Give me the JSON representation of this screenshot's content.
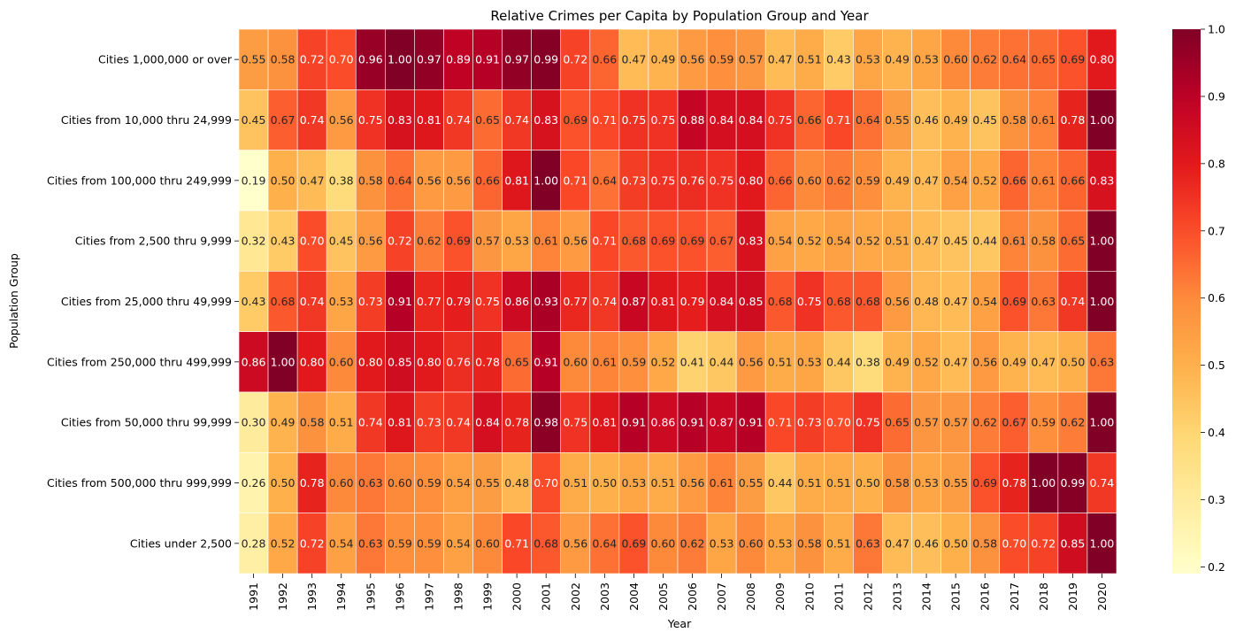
{
  "chart_data": {
    "type": "heatmap",
    "title": "Relative Crimes per Capita by Population Group and Year",
    "xlabel": "Year",
    "ylabel": "Population Group",
    "x": [
      1991,
      1992,
      1993,
      1994,
      1995,
      1996,
      1997,
      1998,
      1999,
      2000,
      2001,
      2002,
      2003,
      2004,
      2005,
      2006,
      2007,
      2008,
      2009,
      2010,
      2011,
      2012,
      2013,
      2014,
      2015,
      2016,
      2017,
      2018,
      2019,
      2020
    ],
    "y": [
      "Cities 1,000,000 or over",
      "Cities from 10,000 thru 24,999",
      "Cities from 100,000 thru 249,999",
      "Cities from 2,500 thru 9,999",
      "Cities from 25,000 thru 49,999",
      "Cities from 250,000 thru 499,999",
      "Cities from 50,000 thru 99,999",
      "Cities from 500,000 thru 999,999",
      "Cities under 2,500"
    ],
    "values": [
      [
        0.55,
        0.58,
        0.72,
        0.7,
        0.96,
        1.0,
        0.97,
        0.89,
        0.91,
        0.97,
        0.99,
        0.72,
        0.66,
        0.47,
        0.49,
        0.56,
        0.59,
        0.57,
        0.47,
        0.51,
        0.43,
        0.53,
        0.49,
        0.53,
        0.6,
        0.62,
        0.64,
        0.65,
        0.69,
        0.8
      ],
      [
        0.45,
        0.67,
        0.74,
        0.56,
        0.75,
        0.83,
        0.81,
        0.74,
        0.65,
        0.74,
        0.83,
        0.69,
        0.71,
        0.75,
        0.75,
        0.88,
        0.84,
        0.84,
        0.75,
        0.66,
        0.71,
        0.64,
        0.55,
        0.46,
        0.49,
        0.45,
        0.58,
        0.61,
        0.78,
        1.0
      ],
      [
        0.19,
        0.5,
        0.47,
        0.38,
        0.58,
        0.64,
        0.56,
        0.56,
        0.66,
        0.81,
        1.0,
        0.71,
        0.64,
        0.73,
        0.75,
        0.76,
        0.75,
        0.8,
        0.66,
        0.6,
        0.62,
        0.59,
        0.49,
        0.47,
        0.54,
        0.52,
        0.66,
        0.61,
        0.66,
        0.83
      ],
      [
        0.32,
        0.43,
        0.7,
        0.45,
        0.56,
        0.72,
        0.62,
        0.69,
        0.57,
        0.53,
        0.61,
        0.56,
        0.71,
        0.68,
        0.69,
        0.69,
        0.67,
        0.83,
        0.54,
        0.52,
        0.54,
        0.52,
        0.51,
        0.47,
        0.45,
        0.44,
        0.61,
        0.58,
        0.65,
        1.0
      ],
      [
        0.43,
        0.68,
        0.74,
        0.53,
        0.73,
        0.91,
        0.77,
        0.79,
        0.75,
        0.86,
        0.93,
        0.77,
        0.74,
        0.87,
        0.81,
        0.79,
        0.84,
        0.85,
        0.68,
        0.75,
        0.68,
        0.68,
        0.56,
        0.48,
        0.47,
        0.54,
        0.69,
        0.63,
        0.74,
        1.0
      ],
      [
        0.86,
        1.0,
        0.8,
        0.6,
        0.8,
        0.85,
        0.8,
        0.76,
        0.78,
        0.65,
        0.91,
        0.6,
        0.61,
        0.59,
        0.52,
        0.41,
        0.44,
        0.56,
        0.51,
        0.53,
        0.44,
        0.38,
        0.49,
        0.52,
        0.47,
        0.56,
        0.49,
        0.47,
        0.5,
        0.63
      ],
      [
        0.3,
        0.49,
        0.58,
        0.51,
        0.74,
        0.81,
        0.73,
        0.74,
        0.84,
        0.78,
        0.98,
        0.75,
        0.81,
        0.91,
        0.86,
        0.91,
        0.87,
        0.91,
        0.71,
        0.73,
        0.7,
        0.75,
        0.65,
        0.57,
        0.57,
        0.62,
        0.67,
        0.59,
        0.62,
        1.0
      ],
      [
        0.26,
        0.5,
        0.78,
        0.6,
        0.63,
        0.6,
        0.59,
        0.54,
        0.55,
        0.48,
        0.7,
        0.51,
        0.5,
        0.53,
        0.51,
        0.56,
        0.61,
        0.55,
        0.44,
        0.51,
        0.51,
        0.5,
        0.58,
        0.53,
        0.55,
        0.69,
        0.78,
        1.0,
        0.99,
        0.74
      ],
      [
        0.28,
        0.52,
        0.72,
        0.54,
        0.63,
        0.59,
        0.59,
        0.54,
        0.6,
        0.71,
        0.68,
        0.56,
        0.64,
        0.69,
        0.6,
        0.62,
        0.53,
        0.6,
        0.53,
        0.58,
        0.51,
        0.63,
        0.47,
        0.46,
        0.5,
        0.58,
        0.7,
        0.72,
        0.85,
        1.0
      ]
    ],
    "colorbar": {
      "min": 0.19,
      "max": 1.0,
      "ticks": [
        "0.2",
        "0.3",
        "0.4",
        "0.5",
        "0.6",
        "0.7",
        "0.8",
        "0.9",
        "1.0"
      ],
      "colormap": "YlOrRd"
    },
    "annotations": "values shown in each cell with 2 decimals",
    "grid": false,
    "legend": "colorbar-right"
  }
}
